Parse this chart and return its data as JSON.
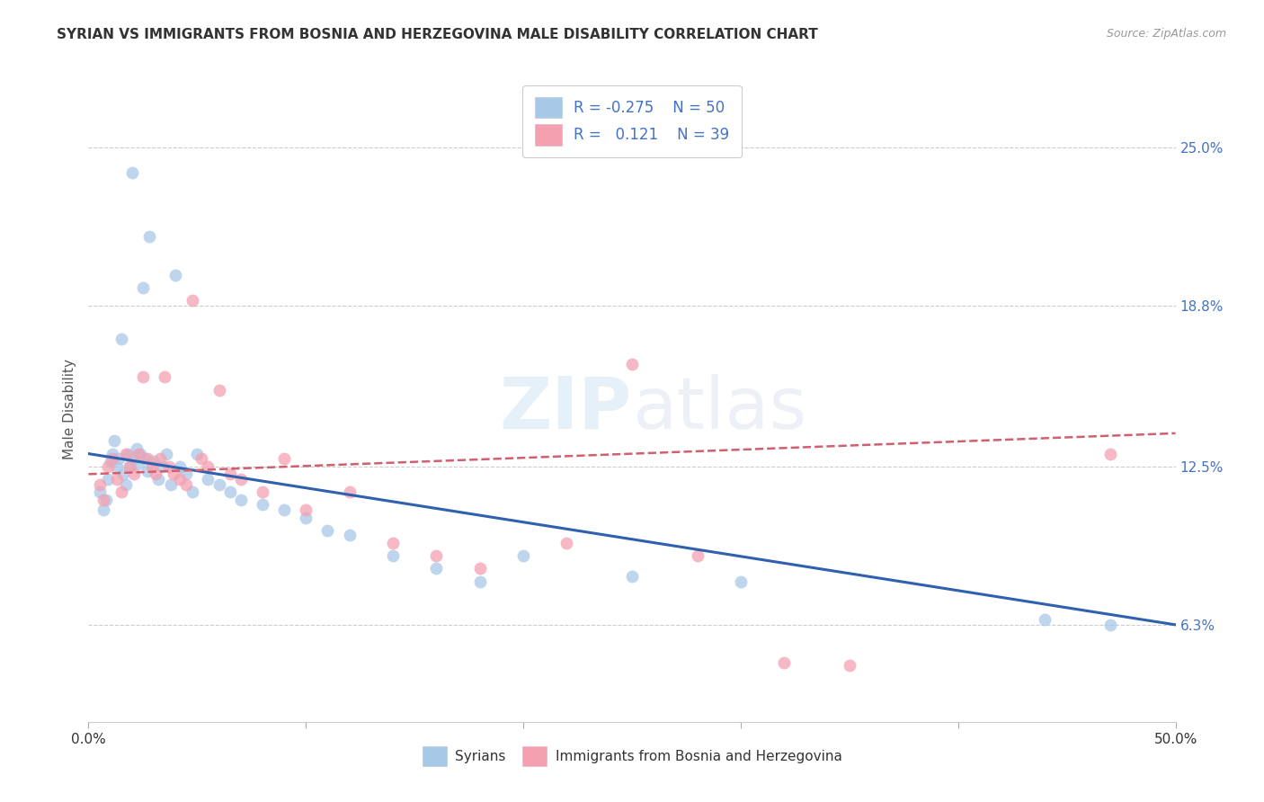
{
  "title": "SYRIAN VS IMMIGRANTS FROM BOSNIA AND HERZEGOVINA MALE DISABILITY CORRELATION CHART",
  "source": "Source: ZipAtlas.com",
  "ylabel": "Male Disability",
  "yticks": [
    0.063,
    0.125,
    0.188,
    0.25
  ],
  "ytick_labels": [
    "6.3%",
    "12.5%",
    "18.8%",
    "25.0%"
  ],
  "xlim": [
    0.0,
    0.5
  ],
  "ylim": [
    0.025,
    0.27
  ],
  "blue_color": "#a8c8e8",
  "pink_color": "#f4a0b0",
  "line_blue": "#3060b0",
  "line_pink": "#d06070",
  "watermark": "ZIPAtlas",
  "syrians_x": [
    0.005,
    0.007,
    0.008,
    0.009,
    0.01,
    0.011,
    0.012,
    0.013,
    0.014,
    0.015,
    0.016,
    0.017,
    0.018,
    0.019,
    0.02,
    0.021,
    0.022,
    0.023,
    0.024,
    0.025,
    0.026,
    0.027,
    0.028,
    0.03,
    0.032,
    0.034,
    0.036,
    0.038,
    0.04,
    0.042,
    0.045,
    0.048,
    0.05,
    0.055,
    0.06,
    0.065,
    0.07,
    0.08,
    0.09,
    0.1,
    0.11,
    0.12,
    0.14,
    0.16,
    0.18,
    0.2,
    0.25,
    0.3,
    0.44,
    0.47
  ],
  "syrians_y": [
    0.115,
    0.108,
    0.112,
    0.12,
    0.127,
    0.13,
    0.135,
    0.125,
    0.128,
    0.175,
    0.122,
    0.118,
    0.13,
    0.125,
    0.24,
    0.128,
    0.132,
    0.126,
    0.13,
    0.195,
    0.128,
    0.123,
    0.215,
    0.127,
    0.12,
    0.125,
    0.13,
    0.118,
    0.2,
    0.125,
    0.122,
    0.115,
    0.13,
    0.12,
    0.118,
    0.115,
    0.112,
    0.11,
    0.108,
    0.105,
    0.1,
    0.098,
    0.09,
    0.085,
    0.08,
    0.09,
    0.082,
    0.08,
    0.065,
    0.063
  ],
  "bosnia_x": [
    0.005,
    0.007,
    0.009,
    0.011,
    0.013,
    0.015,
    0.017,
    0.019,
    0.021,
    0.023,
    0.025,
    0.027,
    0.029,
    0.031,
    0.033,
    0.035,
    0.037,
    0.039,
    0.042,
    0.045,
    0.048,
    0.052,
    0.055,
    0.06,
    0.065,
    0.07,
    0.08,
    0.09,
    0.1,
    0.12,
    0.14,
    0.16,
    0.18,
    0.22,
    0.28,
    0.35,
    0.47,
    0.25,
    0.32
  ],
  "bosnia_y": [
    0.118,
    0.112,
    0.125,
    0.128,
    0.12,
    0.115,
    0.13,
    0.125,
    0.122,
    0.13,
    0.16,
    0.128,
    0.125,
    0.122,
    0.128,
    0.16,
    0.125,
    0.122,
    0.12,
    0.118,
    0.19,
    0.128,
    0.125,
    0.155,
    0.122,
    0.12,
    0.115,
    0.128,
    0.108,
    0.115,
    0.095,
    0.09,
    0.085,
    0.095,
    0.09,
    0.047,
    0.13,
    0.165,
    0.048
  ],
  "blue_line_x": [
    0.0,
    0.5
  ],
  "blue_line_y": [
    0.13,
    0.063
  ],
  "pink_line_x": [
    0.0,
    0.5
  ],
  "pink_line_y": [
    0.122,
    0.138
  ]
}
